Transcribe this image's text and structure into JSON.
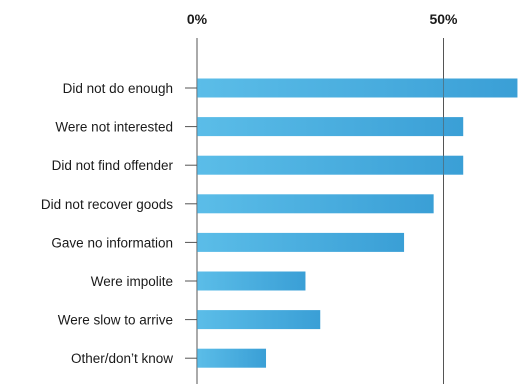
{
  "chart_data": {
    "type": "bar",
    "orientation": "horizontal",
    "title": "",
    "xlabel": "",
    "ylabel": "",
    "x_ticks": [
      "0%",
      "50%"
    ],
    "xlim": [
      0,
      65
    ],
    "grid": "vertical lines at 0% and 50%",
    "categories": [
      "Did not do enough",
      "Were not interested",
      "Did not find offender",
      "Did not recover goods",
      "Gave no information",
      "Were impolite",
      "Were slow to arrive",
      "Other/don’t know"
    ],
    "values": [
      65,
      54,
      54,
      48,
      42,
      22,
      25,
      14
    ],
    "colors": {
      "bar_start": "#5bbde8",
      "bar_end": "#3a9fd6",
      "axis": "#555555",
      "text": "#1a1a1a"
    }
  }
}
